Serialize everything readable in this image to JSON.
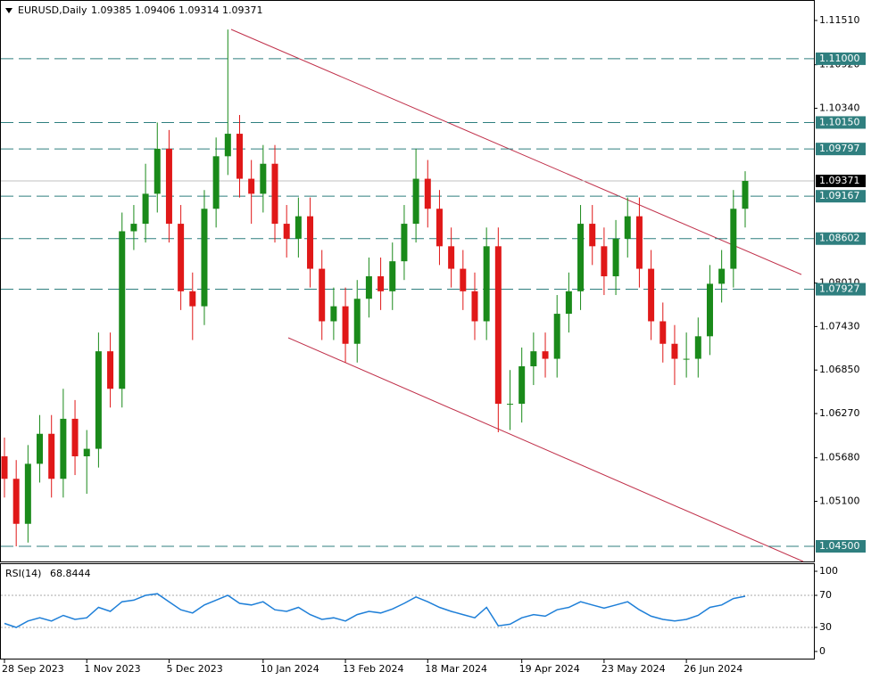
{
  "chart_data": {
    "type": "candlestick",
    "symbol": "EURUSD,Daily",
    "header_values": [
      1.09385,
      1.09406,
      1.09314,
      1.09371
    ],
    "categories": [
      "28 Sep 2023",
      null,
      null,
      null,
      null,
      null,
      null,
      "1 Nov 2023",
      null,
      null,
      null,
      null,
      null,
      null,
      "5 Dec 2023",
      null,
      null,
      null,
      null,
      null,
      null,
      null,
      "10 Jan 2024",
      null,
      null,
      null,
      null,
      null,
      null,
      "13 Feb 2024",
      null,
      null,
      null,
      null,
      null,
      null,
      "18 Mar 2024",
      null,
      null,
      null,
      null,
      null,
      null,
      null,
      "19 Apr 2024",
      null,
      null,
      null,
      null,
      null,
      null,
      "23 May 2024",
      null,
      null,
      null,
      null,
      null,
      null,
      "26 Jun 2024",
      null,
      null,
      null,
      null,
      null
    ],
    "open": [
      1.057,
      1.054,
      1.048,
      1.056,
      1.06,
      1.054,
      1.062,
      1.057,
      1.058,
      1.071,
      1.066,
      1.087,
      1.088,
      1.092,
      1.098,
      1.088,
      1.079,
      1.077,
      1.09,
      1.097,
      1.1,
      1.094,
      1.092,
      1.096,
      1.088,
      1.086,
      1.089,
      1.082,
      1.075,
      1.077,
      1.072,
      1.078,
      1.081,
      1.079,
      1.083,
      1.088,
      1.094,
      1.09,
      1.085,
      1.082,
      1.079,
      1.075,
      1.085,
      1.064,
      1.064,
      1.069,
      1.071,
      1.07,
      1.076,
      1.079,
      1.088,
      1.085,
      1.081,
      1.086,
      1.089,
      1.082,
      1.075,
      1.072,
      1.07,
      1.07,
      1.073,
      1.08,
      1.082,
      1.09
    ],
    "high": [
      1.0595,
      1.0565,
      1.0585,
      1.0625,
      1.0625,
      1.066,
      1.0645,
      1.0605,
      1.0735,
      1.0735,
      1.0895,
      1.0905,
      1.096,
      1.1015,
      1.1005,
      1.0905,
      1.0815,
      1.0925,
      1.0995,
      1.1139,
      1.1025,
      1.0965,
      1.0985,
      1.0985,
      1.0905,
      1.0915,
      1.0915,
      1.0845,
      1.0795,
      1.0795,
      1.0805,
      1.0835,
      1.0835,
      1.0855,
      1.0905,
      1.098,
      1.0965,
      1.0925,
      1.0875,
      1.0845,
      1.0815,
      1.0875,
      1.0875,
      1.0685,
      1.0715,
      1.0735,
      1.0735,
      1.0785,
      1.0815,
      1.0905,
      1.0905,
      1.0875,
      1.0885,
      1.0915,
      1.0915,
      1.0845,
      1.0775,
      1.0745,
      1.0735,
      1.0755,
      1.0825,
      1.0845,
      1.0925,
      1.095
    ],
    "low": [
      1.0515,
      1.045,
      1.0455,
      1.0535,
      1.0515,
      1.0515,
      1.0545,
      1.052,
      1.0555,
      1.0635,
      1.0635,
      1.0845,
      1.0855,
      1.0895,
      1.0855,
      1.0765,
      1.0725,
      1.0745,
      1.0875,
      1.0945,
      1.0915,
      1.088,
      1.0895,
      1.0855,
      1.0835,
      1.0835,
      1.0795,
      1.0725,
      1.0725,
      1.0695,
      1.0695,
      1.0755,
      1.0765,
      1.0765,
      1.0805,
      1.0855,
      1.0875,
      1.0825,
      1.0795,
      1.0765,
      1.0725,
      1.0725,
      1.0602,
      1.0605,
      1.0615,
      1.0665,
      1.0675,
      1.0675,
      1.0735,
      1.0765,
      1.0825,
      1.0785,
      1.0785,
      1.0835,
      1.0795,
      1.0725,
      1.0695,
      1.0665,
      1.0675,
      1.0675,
      1.0705,
      1.0775,
      1.0795,
      1.0875
    ],
    "close": [
      1.054,
      1.048,
      1.056,
      1.06,
      1.054,
      1.062,
      1.057,
      1.058,
      1.071,
      1.066,
      1.087,
      1.088,
      1.092,
      1.098,
      1.088,
      1.079,
      1.077,
      1.09,
      1.097,
      1.1,
      1.094,
      1.092,
      1.096,
      1.088,
      1.086,
      1.089,
      1.082,
      1.075,
      1.077,
      1.072,
      1.078,
      1.081,
      1.079,
      1.083,
      1.088,
      1.094,
      1.09,
      1.085,
      1.082,
      1.079,
      1.075,
      1.085,
      1.064,
      1.064,
      1.069,
      1.071,
      1.07,
      1.076,
      1.079,
      1.088,
      1.085,
      1.081,
      1.086,
      1.089,
      1.082,
      1.075,
      1.072,
      1.07,
      1.07,
      1.073,
      1.08,
      1.082,
      1.09,
      1.09371
    ],
    "up_color": "#1a8a1a",
    "down_color": "#e01818",
    "ylim": [
      1.04298,
      1.11783
    ],
    "yticks": [
      {
        "value": 1.1151,
        "label": "1.11510"
      },
      {
        "value": 1.1092,
        "label": "1.10920"
      },
      {
        "value": 1.1034,
        "label": "1.10340"
      },
      {
        "value": 1.0801,
        "label": "1.08010"
      },
      {
        "value": 1.0743,
        "label": "1.07430"
      },
      {
        "value": 1.0685,
        "label": "1.06850"
      },
      {
        "value": 1.0627,
        "label": "1.06270"
      },
      {
        "value": 1.0568,
        "label": "1.05680"
      },
      {
        "value": 1.051,
        "label": "1.05100"
      }
    ],
    "levels": [
      {
        "value": 1.11,
        "label": "1.11000"
      },
      {
        "value": 1.1015,
        "label": "1.10150"
      },
      {
        "value": 1.09797,
        "label": "1.09797"
      },
      {
        "value": 1.09167,
        "label": "1.09167"
      },
      {
        "value": 1.08602,
        "label": "1.08602"
      },
      {
        "value": 1.07927,
        "label": "1.07927"
      },
      {
        "value": 1.045,
        "label": "1.04500"
      }
    ],
    "level_color": "#2f7f7f",
    "current_price": {
      "value": 1.09371,
      "label": "1.09371"
    },
    "rsi": {
      "name": "RSI(14)",
      "last_value": 68.8444,
      "color": "#1e7fd8",
      "values": [
        35,
        30,
        38,
        42,
        38,
        45,
        40,
        42,
        55,
        50,
        62,
        64,
        70,
        72,
        62,
        52,
        48,
        58,
        64,
        70,
        60,
        58,
        62,
        52,
        50,
        55,
        46,
        40,
        42,
        38,
        46,
        50,
        48,
        53,
        60,
        68,
        62,
        55,
        50,
        46,
        42,
        55,
        32,
        34,
        42,
        46,
        44,
        52,
        55,
        62,
        58,
        54,
        58,
        62,
        52,
        44,
        40,
        38,
        40,
        45,
        55,
        58,
        66,
        68.8444
      ],
      "ylim": [
        -10,
        110
      ],
      "yticks": [
        100,
        70,
        30,
        0
      ],
      "levels": [
        70,
        30
      ]
    }
  }
}
